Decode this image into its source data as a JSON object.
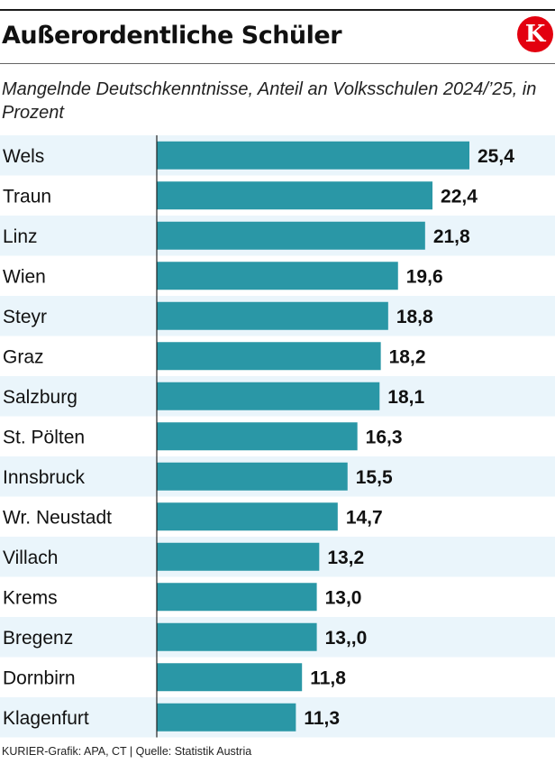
{
  "header": {
    "title": "Außerordentliche Schüler",
    "logo_letter": "K",
    "logo_color": "#e3000f"
  },
  "chart_data": {
    "type": "bar",
    "orientation": "horizontal",
    "title": "Außerordentliche Schüler",
    "subtitle": "Mangelnde Deutschkenntnisse, Anteil an Volksschulen 2024/’25, in Prozent",
    "categories": [
      "Wels",
      "Traun",
      "Linz",
      "Wien",
      "Steyr",
      "Graz",
      "Salzburg",
      "St. Pölten",
      "Innsbruck",
      "Wr. Neustadt",
      "Villach",
      "Krems",
      "Bregenz",
      "Dornbirn",
      "Klagenfurt"
    ],
    "values": [
      25.4,
      22.4,
      21.8,
      19.6,
      18.8,
      18.2,
      18.1,
      16.3,
      15.5,
      14.7,
      13.2,
      13.0,
      13.0,
      11.8,
      11.3
    ],
    "value_labels": [
      "25,4",
      "22,4",
      "21,8",
      "19,6",
      "18,8",
      "18,2",
      "18,1",
      "16,3",
      "15,5",
      "14,7",
      "13,2",
      "13,0",
      "13,,0",
      "11,8",
      "11,3"
    ],
    "xlim": [
      0,
      25.4
    ],
    "bar_color": "#2a97a6",
    "stripe_color": "#eaf5fb",
    "grid": false,
    "legend": "none"
  },
  "footer": {
    "source": "KURIER-Grafik: APA, CT | Quelle: Statistik Austria"
  }
}
